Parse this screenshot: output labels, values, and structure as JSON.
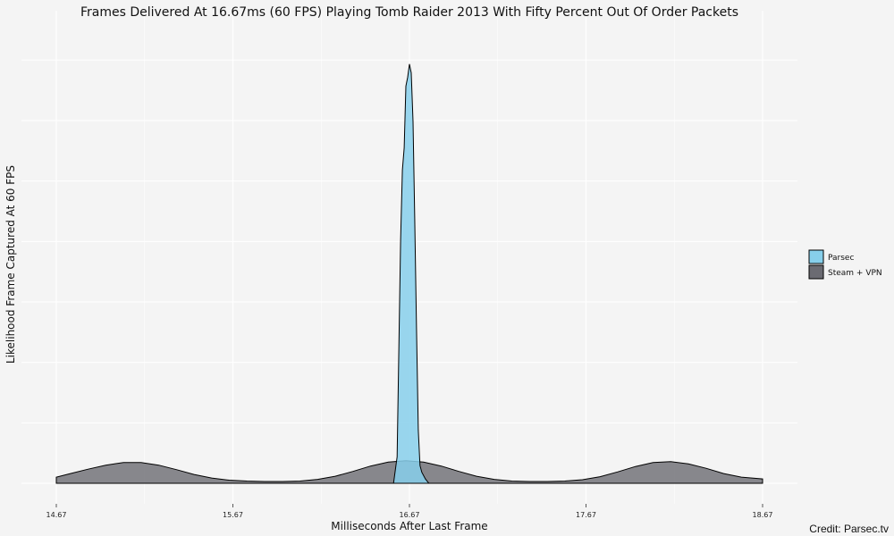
{
  "chart_data": {
    "type": "area",
    "title": "Frames Delivered At 16.67ms (60 FPS) Playing Tomb Raider 2013 With Fifty Percent Out Of Order Packets",
    "xlabel": "Milliseconds After Last Frame",
    "ylabel": "Likelihood Frame Captured At 60 FPS",
    "xlim": [
      14.67,
      18.67
    ],
    "ylim": [
      0,
      1.0
    ],
    "x_ticks": [
      "14.67",
      "15.67",
      "16.67",
      "17.67",
      "18.67"
    ],
    "x_tick_values": [
      14.67,
      15.67,
      16.67,
      17.67,
      18.67
    ],
    "grid": true,
    "legend_position": "right",
    "series": [
      {
        "name": "Steam + VPN",
        "color": "#6b6b72",
        "x": [
          14.67,
          14.75,
          14.85,
          14.95,
          15.05,
          15.15,
          15.25,
          15.35,
          15.45,
          15.55,
          15.65,
          15.75,
          15.85,
          15.95,
          16.05,
          16.15,
          16.25,
          16.35,
          16.45,
          16.55,
          16.65,
          16.75,
          16.85,
          16.95,
          17.05,
          17.15,
          17.25,
          17.35,
          17.45,
          17.55,
          17.65,
          17.75,
          17.85,
          17.95,
          18.05,
          18.15,
          18.25,
          18.35,
          18.45,
          18.55,
          18.67
        ],
        "y": [
          0.014,
          0.022,
          0.032,
          0.041,
          0.047,
          0.047,
          0.041,
          0.031,
          0.02,
          0.012,
          0.007,
          0.005,
          0.004,
          0.004,
          0.005,
          0.009,
          0.016,
          0.027,
          0.039,
          0.048,
          0.051,
          0.048,
          0.039,
          0.027,
          0.016,
          0.009,
          0.005,
          0.004,
          0.004,
          0.005,
          0.008,
          0.015,
          0.026,
          0.038,
          0.047,
          0.049,
          0.044,
          0.034,
          0.022,
          0.014,
          0.01
        ]
      },
      {
        "name": "Parsec",
        "color": "#87cfeb",
        "x": [
          16.58,
          16.6,
          16.62,
          16.63,
          16.64,
          16.65,
          16.66,
          16.67,
          16.68,
          16.69,
          16.7,
          16.71,
          16.72,
          16.73,
          16.74,
          16.76,
          16.78
        ],
        "y": [
          0,
          0.06,
          0.55,
          0.71,
          0.76,
          0.9,
          0.92,
          0.95,
          0.93,
          0.82,
          0.6,
          0.35,
          0.12,
          0.04,
          0.025,
          0.01,
          0
        ]
      }
    ],
    "credit": "Credit: Parsec.tv"
  }
}
